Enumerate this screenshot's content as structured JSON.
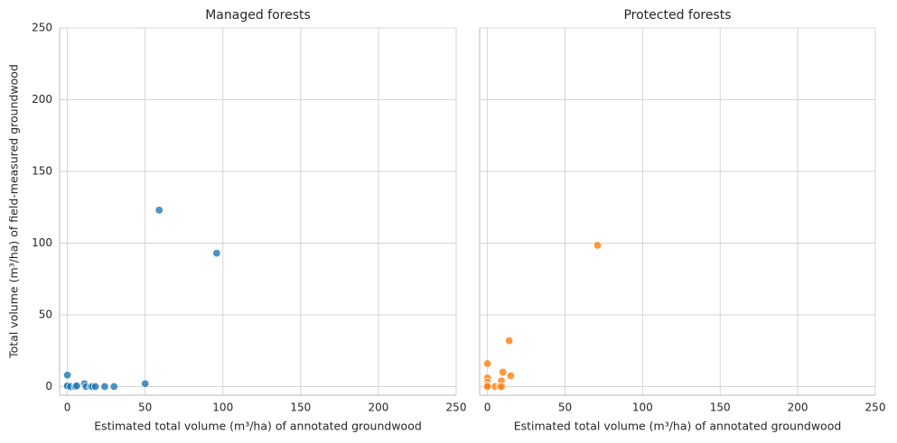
{
  "chart_data": [
    {
      "type": "scatter",
      "title": "Managed forests",
      "xlabel": "Estimated total volume (m³/ha) of annotated groundwood",
      "ylabel": "Total volume (m³/ha) of field-measured groundwood",
      "x": [
        0,
        0,
        0,
        2,
        5,
        6,
        11,
        12,
        15,
        16,
        18,
        24,
        30,
        50,
        59,
        96
      ],
      "values": [
        8,
        0,
        0.5,
        0,
        0,
        0.5,
        2,
        0,
        0,
        0,
        0,
        0,
        0,
        2,
        123,
        93
      ],
      "color": "#1f77b4",
      "xlim": [
        -5,
        250
      ],
      "ylim": [
        -6,
        250
      ],
      "xticks": [
        0,
        50,
        100,
        150,
        200,
        250
      ],
      "yticks": [
        0,
        50,
        100,
        150,
        200,
        250
      ],
      "grid": true
    },
    {
      "type": "scatter",
      "title": "Protected forests",
      "xlabel": "Estimated total volume (m³/ha) of annotated groundwood",
      "x": [
        0,
        0,
        0,
        0,
        0,
        5,
        8,
        9,
        9,
        10,
        14,
        15,
        71
      ],
      "values": [
        16,
        6,
        3,
        1,
        0,
        0,
        0,
        4,
        0,
        10,
        32,
        7.5,
        98.5
      ],
      "color": "#ff7f0e",
      "xlim": [
        -5,
        250
      ],
      "ylim": [
        -6,
        250
      ],
      "xticks": [
        0,
        50,
        100,
        150,
        200,
        250
      ],
      "yticks": [
        0,
        50,
        100,
        150,
        200,
        250
      ],
      "show_ytick_labels": false,
      "grid": true
    }
  ]
}
